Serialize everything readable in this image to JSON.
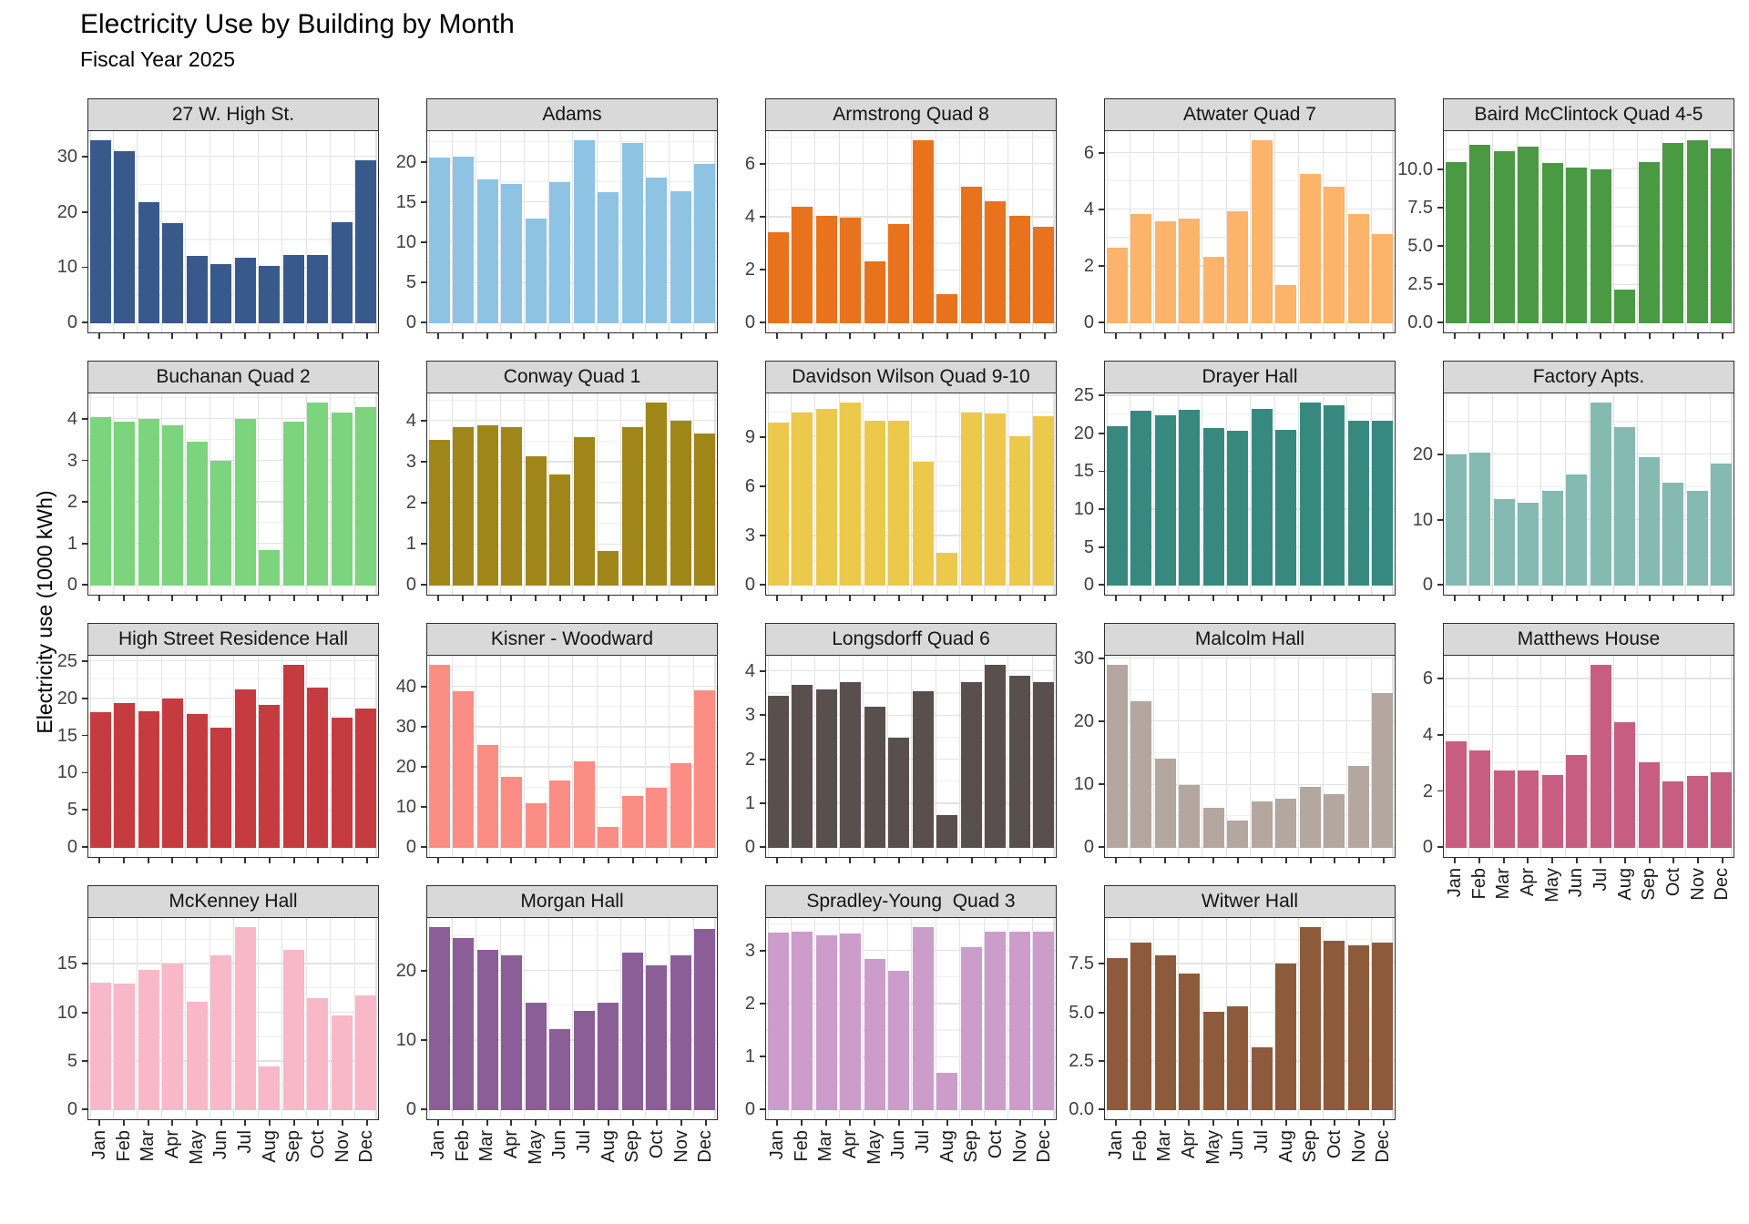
{
  "chart_data": {
    "type": "bar",
    "title": "Electricity Use by Building by Month",
    "subtitle": "Fiscal Year 2025",
    "ylabel": "Electricity use (1000 kWh)",
    "xlabel": "",
    "legend": "none",
    "grid": "on",
    "layout": {
      "columns": 5,
      "rows": 4,
      "shared_x": true,
      "free_y": true
    },
    "categories": [
      "Jan",
      "Feb",
      "Mar",
      "Apr",
      "May",
      "Jun",
      "Jul",
      "Aug",
      "Sep",
      "Oct",
      "Nov",
      "Dec"
    ],
    "theme": {
      "strip_bg": "#d9d9d9",
      "panel_border": "#2f2f2f",
      "grid_major": "#e3e3e3",
      "grid_minor": "#f0f0f0",
      "tick_text": "#404040",
      "axis_tick": "#333333"
    },
    "facets": [
      {
        "name": "27 W. High St.",
        "color": "#38598b",
        "x_labels": false,
        "ticks": [
          {
            "value": 0,
            "label": "0"
          },
          {
            "value": 10,
            "label": "10"
          },
          {
            "value": 20,
            "label": "20"
          },
          {
            "value": 30,
            "label": "30"
          }
        ],
        "values": [
          33.0,
          31.0,
          21.8,
          18.0,
          12.1,
          10.6,
          11.8,
          10.4,
          12.3,
          12.3,
          18.2,
          29.4
        ]
      },
      {
        "name": "Adams",
        "color": "#8fc3e4",
        "x_labels": false,
        "ticks": [
          {
            "value": 0,
            "label": "0"
          },
          {
            "value": 5,
            "label": "5"
          },
          {
            "value": 10,
            "label": "10"
          },
          {
            "value": 15,
            "label": "15"
          },
          {
            "value": 20,
            "label": "20"
          }
        ],
        "values": [
          20.6,
          20.7,
          17.8,
          17.3,
          13.0,
          17.5,
          22.7,
          16.3,
          22.4,
          18.1,
          16.4,
          19.8
        ]
      },
      {
        "name": "Armstrong Quad 8",
        "color": "#e8731c",
        "x_labels": false,
        "ticks": [
          {
            "value": 0,
            "label": "0"
          },
          {
            "value": 2,
            "label": "2"
          },
          {
            "value": 4,
            "label": "4"
          },
          {
            "value": 6,
            "label": "6"
          }
        ],
        "values": [
          3.45,
          4.4,
          4.05,
          4.0,
          2.35,
          3.75,
          6.9,
          1.1,
          5.15,
          4.6,
          4.05,
          3.65
        ]
      },
      {
        "name": "Atwater Quad 7",
        "color": "#fbb469",
        "x_labels": false,
        "ticks": [
          {
            "value": 0,
            "label": "0"
          },
          {
            "value": 2,
            "label": "2"
          },
          {
            "value": 4,
            "label": "4"
          },
          {
            "value": 6,
            "label": "6"
          }
        ],
        "values": [
          2.65,
          3.85,
          3.6,
          3.7,
          2.35,
          3.95,
          6.45,
          1.35,
          5.25,
          4.8,
          3.85,
          3.15
        ]
      },
      {
        "name": "Baird McClintock Quad 4-5",
        "color": "#4a9a44",
        "x_labels": false,
        "ticks": [
          {
            "value": 0,
            "label": "0.0"
          },
          {
            "value": 2.5,
            "label": "2.5"
          },
          {
            "value": 5,
            "label": "5.0"
          },
          {
            "value": 7.5,
            "label": "7.5"
          },
          {
            "value": 10,
            "label": "10.0"
          }
        ],
        "values": [
          10.5,
          11.6,
          11.2,
          11.5,
          10.4,
          10.1,
          10.0,
          2.2,
          10.5,
          11.7,
          11.9,
          11.4
        ]
      },
      {
        "name": "Buchanan Quad 2",
        "color": "#7cd47c",
        "x_labels": false,
        "ticks": [
          {
            "value": 0,
            "label": "0"
          },
          {
            "value": 1,
            "label": "1"
          },
          {
            "value": 2,
            "label": "2"
          },
          {
            "value": 3,
            "label": "3"
          },
          {
            "value": 4,
            "label": "4"
          }
        ],
        "values": [
          4.05,
          3.95,
          4.0,
          3.85,
          3.45,
          3.0,
          4.0,
          0.85,
          3.95,
          4.4,
          4.15,
          4.3
        ]
      },
      {
        "name": "Conway Quad 1",
        "color": "#a08619",
        "x_labels": false,
        "ticks": [
          {
            "value": 0,
            "label": "0"
          },
          {
            "value": 1,
            "label": "1"
          },
          {
            "value": 2,
            "label": "2"
          },
          {
            "value": 3,
            "label": "3"
          },
          {
            "value": 4,
            "label": "4"
          }
        ],
        "values": [
          3.55,
          3.85,
          3.9,
          3.85,
          3.15,
          2.7,
          3.6,
          0.85,
          3.85,
          4.45,
          4.0,
          3.7
        ]
      },
      {
        "name": "Davidson Wilson Quad 9-10",
        "color": "#ecc94b",
        "x_labels": false,
        "ticks": [
          {
            "value": 0,
            "label": "0"
          },
          {
            "value": 3,
            "label": "3"
          },
          {
            "value": 6,
            "label": "6"
          },
          {
            "value": 9,
            "label": "9"
          }
        ],
        "values": [
          9.9,
          10.5,
          10.7,
          11.1,
          10.0,
          10.0,
          7.5,
          2.0,
          10.5,
          10.45,
          9.05,
          10.3
        ]
      },
      {
        "name": "Drayer Hall",
        "color": "#37897f",
        "x_labels": false,
        "ticks": [
          {
            "value": 0,
            "label": "0"
          },
          {
            "value": 5,
            "label": "5"
          },
          {
            "value": 10,
            "label": "10"
          },
          {
            "value": 15,
            "label": "15"
          },
          {
            "value": 20,
            "label": "20"
          },
          {
            "value": 25,
            "label": "25"
          }
        ],
        "values": [
          21.0,
          23.0,
          22.4,
          23.2,
          20.7,
          20.4,
          23.3,
          20.5,
          24.1,
          23.7,
          21.7,
          21.7
        ]
      },
      {
        "name": "Factory Apts.",
        "color": "#84bab2",
        "x_labels": false,
        "ticks": [
          {
            "value": 0,
            "label": "0"
          },
          {
            "value": 10,
            "label": "10"
          },
          {
            "value": 20,
            "label": "20"
          }
        ],
        "values": [
          20.1,
          20.3,
          13.2,
          12.7,
          14.5,
          17.0,
          28.0,
          24.3,
          19.6,
          15.8,
          14.5,
          18.7
        ]
      },
      {
        "name": "High Street Residence Hall",
        "color": "#c53b40",
        "x_labels": false,
        "ticks": [
          {
            "value": 0,
            "label": "0"
          },
          {
            "value": 5,
            "label": "5"
          },
          {
            "value": 10,
            "label": "10"
          },
          {
            "value": 15,
            "label": "15"
          },
          {
            "value": 20,
            "label": "20"
          },
          {
            "value": 25,
            "label": "25"
          }
        ],
        "values": [
          18.2,
          19.4,
          18.3,
          20.0,
          17.9,
          16.1,
          21.2,
          19.2,
          24.5,
          21.5,
          17.4,
          18.6
        ]
      },
      {
        "name": "Kisner - Woodward",
        "color": "#fb8d85",
        "x_labels": false,
        "ticks": [
          {
            "value": 0,
            "label": "0"
          },
          {
            "value": 10,
            "label": "10"
          },
          {
            "value": 20,
            "label": "20"
          },
          {
            "value": 30,
            "label": "30"
          },
          {
            "value": 40,
            "label": "40"
          }
        ],
        "values": [
          45.5,
          39.0,
          25.5,
          17.6,
          11.0,
          16.8,
          21.5,
          5.3,
          12.8,
          15.0,
          21.0,
          39.2
        ]
      },
      {
        "name": "Longsdorff Quad 6",
        "color": "#59504d",
        "x_labels": false,
        "ticks": [
          {
            "value": 0,
            "label": "0"
          },
          {
            "value": 1,
            "label": "1"
          },
          {
            "value": 2,
            "label": "2"
          },
          {
            "value": 3,
            "label": "3"
          },
          {
            "value": 4,
            "label": "4"
          }
        ],
        "values": [
          3.45,
          3.7,
          3.6,
          3.75,
          3.2,
          2.5,
          3.55,
          0.75,
          3.75,
          4.15,
          3.9,
          3.75
        ]
      },
      {
        "name": "Malcolm Hall",
        "color": "#b4a7a0",
        "x_labels": false,
        "ticks": [
          {
            "value": 0,
            "label": "0"
          },
          {
            "value": 10,
            "label": "10"
          },
          {
            "value": 20,
            "label": "20"
          },
          {
            "value": 30,
            "label": "30"
          }
        ],
        "values": [
          29.0,
          23.3,
          14.1,
          10.0,
          6.4,
          4.3,
          7.3,
          7.8,
          9.7,
          8.5,
          13.0,
          24.5
        ]
      },
      {
        "name": "Matthews House",
        "color": "#c85d82",
        "x_labels": true,
        "ticks": [
          {
            "value": 0,
            "label": "0"
          },
          {
            "value": 2,
            "label": "2"
          },
          {
            "value": 4,
            "label": "4"
          },
          {
            "value": 6,
            "label": "6"
          }
        ],
        "values": [
          3.8,
          3.45,
          2.75,
          2.75,
          2.6,
          3.3,
          6.5,
          4.45,
          3.05,
          2.35,
          2.55,
          2.7
        ]
      },
      {
        "name": "McKenney Hall",
        "color": "#f8b8c8",
        "x_labels": true,
        "ticks": [
          {
            "value": 0,
            "label": "0"
          },
          {
            "value": 5,
            "label": "5"
          },
          {
            "value": 10,
            "label": "10"
          },
          {
            "value": 15,
            "label": "15"
          }
        ],
        "values": [
          13.1,
          13.0,
          14.4,
          15.1,
          11.1,
          15.9,
          18.8,
          4.5,
          16.5,
          11.5,
          9.7,
          11.8
        ]
      },
      {
        "name": "Morgan Hall",
        "color": "#8b5e97",
        "x_labels": true,
        "ticks": [
          {
            "value": 0,
            "label": "0"
          },
          {
            "value": 10,
            "label": "10"
          },
          {
            "value": 20,
            "label": "20"
          }
        ],
        "values": [
          26.3,
          24.8,
          23.0,
          22.3,
          15.5,
          11.7,
          14.3,
          15.5,
          22.6,
          20.8,
          22.3,
          26.0
        ]
      },
      {
        "name": "Spradley-Young  Quad 3",
        "color": "#cc9ccb",
        "x_labels": true,
        "ticks": [
          {
            "value": 0,
            "label": "0"
          },
          {
            "value": 1,
            "label": "1"
          },
          {
            "value": 2,
            "label": "2"
          },
          {
            "value": 3,
            "label": "3"
          }
        ],
        "values": [
          3.35,
          3.37,
          3.3,
          3.33,
          2.85,
          2.63,
          3.45,
          0.7,
          3.07,
          3.36,
          3.37,
          3.36
        ]
      },
      {
        "name": "Witwer Hall",
        "color": "#8d5b3b",
        "x_labels": true,
        "ticks": [
          {
            "value": 0,
            "label": "0.0"
          },
          {
            "value": 2.5,
            "label": "2.5"
          },
          {
            "value": 5,
            "label": "5.0"
          },
          {
            "value": 7.5,
            "label": "7.5"
          }
        ],
        "values": [
          7.8,
          8.6,
          7.95,
          7.0,
          5.05,
          5.35,
          3.25,
          7.55,
          9.4,
          8.7,
          8.45,
          8.6
        ]
      }
    ]
  }
}
